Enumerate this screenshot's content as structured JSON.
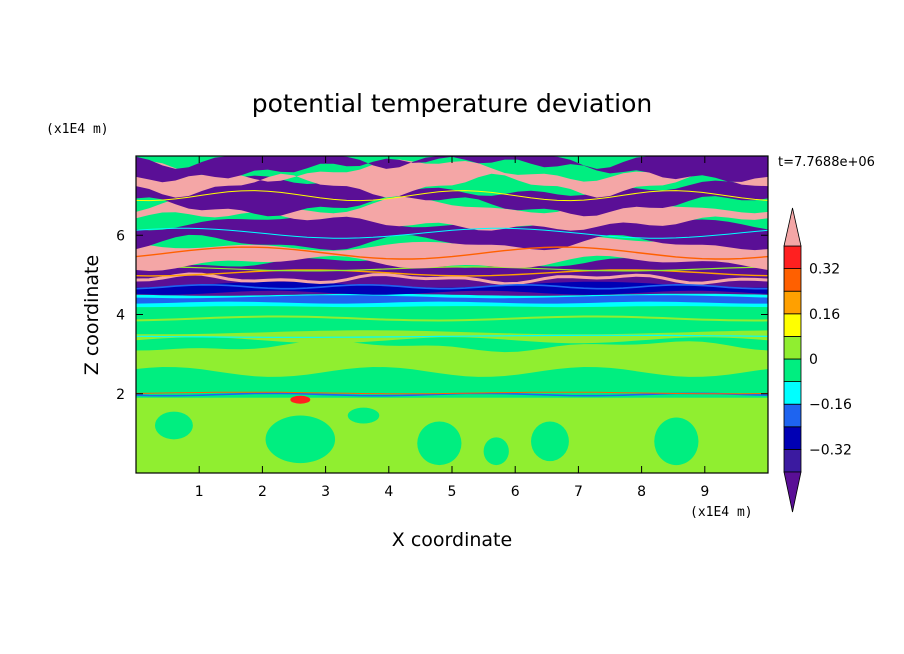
{
  "chart_data": {
    "type": "heatmap",
    "title": "potential temperature deviation",
    "xlabel": "X coordinate",
    "ylabel": "Z coordinate",
    "x_unit": "(x1E4 m)",
    "z_unit": "(x1E4 m)",
    "time_label": "t=7.7688e+06",
    "xlim": [
      0,
      10
    ],
    "ylim": [
      0,
      8
    ],
    "x_ticks": [
      "1",
      "2",
      "3",
      "4",
      "5",
      "6",
      "7",
      "8",
      "9"
    ],
    "x_tick_values": [
      1,
      2,
      3,
      4,
      5,
      6,
      7,
      8,
      9
    ],
    "y_ticks": [
      "2",
      "4",
      "6"
    ],
    "y_tick_values": [
      2,
      4,
      6
    ],
    "colorbar": {
      "labels": [
        "0.32",
        "0.16",
        "0",
        "−0.16",
        "−0.32"
      ],
      "label_values": [
        0.32,
        0.16,
        0,
        -0.16,
        -0.32
      ],
      "levels": [
        -0.4,
        -0.32,
        -0.24,
        -0.16,
        -0.08,
        0,
        0.08,
        0.16,
        0.24,
        0.32,
        0.4
      ],
      "colors": [
        "#5a0f96",
        "#3b1aa0",
        "#0000b4",
        "#1e64f0",
        "#00ffff",
        "#00ee80",
        "#90ee30",
        "#ffff00",
        "#ffa000",
        "#ff6000",
        "#ff2020",
        "#f4a6a6"
      ],
      "extend": "both"
    },
    "layers": [
      {
        "z_range": [
          0,
          1.9
        ],
        "pattern": "green / yellow-green cells"
      },
      {
        "z_range": [
          1.9,
          2.05
        ],
        "pattern": "thin blue and red streaks"
      },
      {
        "z_range": [
          2.05,
          4.2
        ],
        "pattern": "green with yellow-green patches"
      },
      {
        "z_range": [
          4.2,
          4.5
        ],
        "pattern": "cyan / blue band"
      },
      {
        "z_range": [
          4.5,
          5.3
        ],
        "pattern": "purple / blue / multicolor layers"
      },
      {
        "z_range": [
          5.3,
          8.0
        ],
        "pattern": "alternating pink and purple layers"
      }
    ]
  }
}
